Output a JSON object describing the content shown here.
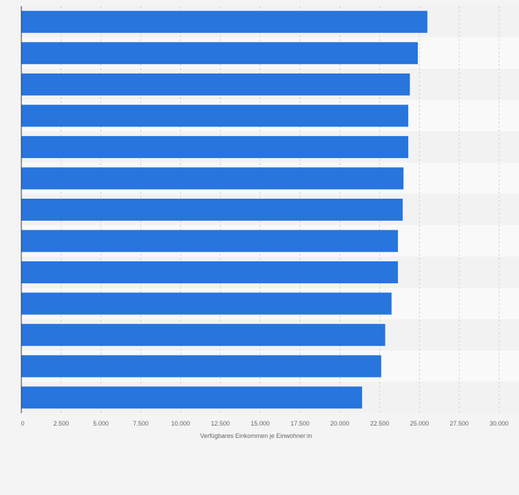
{
  "chart_data": {
    "type": "bar",
    "orientation": "horizontal",
    "categories": [
      "",
      "",
      "",
      "",
      "",
      "",
      "",
      "",
      "",
      "",
      "",
      "",
      ""
    ],
    "values": [
      25500,
      24900,
      24400,
      24300,
      24300,
      24000,
      23950,
      23650,
      23650,
      23250,
      22850,
      22600,
      21400
    ],
    "xlabel": "Verfügbares Einkommen je Einwohner:in",
    "ylabel": "",
    "xlim": [
      0,
      30000
    ],
    "x_ticks": [
      "0",
      "2.500",
      "5.000",
      "7.500",
      "10.000",
      "12.500",
      "15.000",
      "17.500",
      "20.000",
      "22.500",
      "25.000",
      "27.500",
      "30.000"
    ],
    "grid": true,
    "legend": "none",
    "colors": {
      "bar": "#2775dd",
      "band_light": "#f9f9f9",
      "band_dark": "#f2f2f2",
      "background": "#f4f4f4",
      "grid": "#d0d0d0",
      "axis": "#333333",
      "text": "#666666"
    }
  }
}
